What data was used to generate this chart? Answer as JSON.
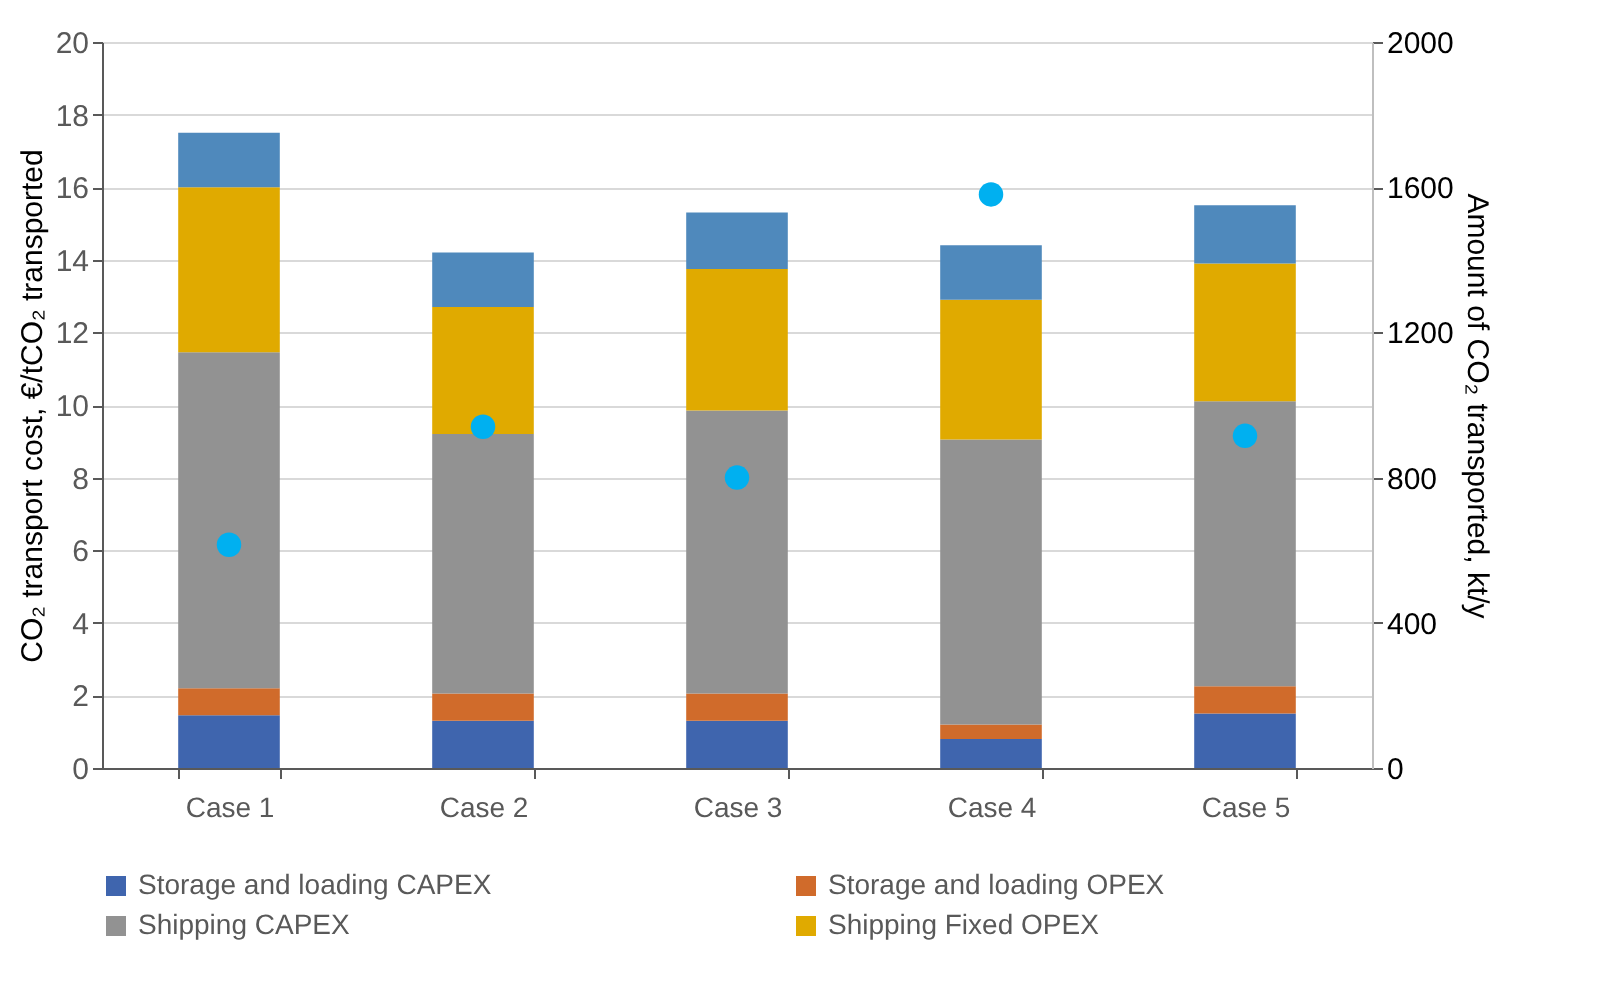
{
  "chart_data": {
    "type": "bar",
    "stacked": true,
    "ylabel": "CO₂ transport cost, €/tCO₂ transported",
    "y2label": "Amount of CO₂ transported, kt/y",
    "categories": [
      "Case 1",
      "Case 2",
      "Case 3",
      "Case 4",
      "Case 5"
    ],
    "series": [
      {
        "name": "Storage and loading CAPEX",
        "color": "#3f65ae",
        "values": [
          1.45,
          1.3,
          1.3,
          0.8,
          1.5
        ]
      },
      {
        "name": "Storage and loading OPEX",
        "color": "#d06b2b",
        "values": [
          0.75,
          0.75,
          0.75,
          0.4,
          0.75
        ]
      },
      {
        "name": "Shipping CAPEX",
        "color": "#929292",
        "values": [
          9.25,
          7.15,
          7.8,
          7.85,
          7.85
        ]
      },
      {
        "name": "Shipping Fixed OPEX",
        "color": "#e0aa00",
        "values": [
          4.55,
          3.5,
          3.9,
          3.85,
          3.8
        ]
      },
      {
        "color": "#4f89bc",
        "values": [
          1.5,
          1.5,
          1.55,
          1.5,
          1.6
        ]
      },
      {
        "type": "scatter",
        "axis": "y2",
        "marker": "circle",
        "color": "#00b0f0",
        "values": [
          615,
          940,
          800,
          1580,
          915
        ]
      }
    ],
    "ylim": [
      0,
      20
    ],
    "yticks": [
      0,
      2,
      4,
      6,
      8,
      10,
      12,
      14,
      16,
      18,
      20
    ],
    "y2lim": [
      0,
      2000
    ],
    "y2ticks": [
      0,
      400,
      800,
      1200,
      1600,
      2000
    ],
    "grid": "y",
    "legend": "bottom"
  }
}
